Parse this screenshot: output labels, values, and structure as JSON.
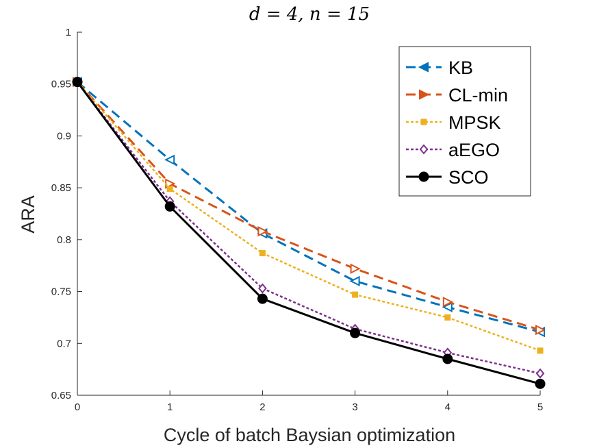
{
  "chart_data": {
    "type": "line",
    "title": "d = 4, n = 15",
    "xlabel": "Cycle of batch Baysian optimization",
    "ylabel": "ARA",
    "xlim": [
      0,
      5
    ],
    "ylim": [
      0.65,
      1
    ],
    "x": [
      0,
      1,
      2,
      3,
      4,
      5
    ],
    "x_ticks": [
      "0",
      "1",
      "2",
      "3",
      "4",
      "5"
    ],
    "y_ticks": [
      "0.65",
      "0.7",
      "0.75",
      "0.8",
      "0.85",
      "0.9",
      "0.95",
      "1"
    ],
    "legend_position": "top-right",
    "series": [
      {
        "name": "KB",
        "color": "#0072BD",
        "line": "dashed",
        "marker": "triangle-left-open",
        "values": [
          0.952,
          0.877,
          0.806,
          0.76,
          0.735,
          0.711
        ]
      },
      {
        "name": "CL-min",
        "color": "#D95319",
        "line": "dashed",
        "marker": "triangle-right-open",
        "values": [
          0.952,
          0.854,
          0.808,
          0.772,
          0.74,
          0.713
        ]
      },
      {
        "name": "MPSK",
        "color": "#EDB120",
        "line": "dotted",
        "marker": "square",
        "values": [
          0.952,
          0.849,
          0.787,
          0.747,
          0.725,
          0.693
        ]
      },
      {
        "name": "aEGO",
        "color": "#7E2F8E",
        "line": "dotted",
        "marker": "diamond-open",
        "values": [
          0.952,
          0.837,
          0.753,
          0.714,
          0.691,
          0.671
        ]
      },
      {
        "name": "SCO",
        "color": "#000000",
        "line": "solid",
        "marker": "circle-filled",
        "values": [
          0.952,
          0.832,
          0.743,
          0.71,
          0.685,
          0.661
        ]
      }
    ]
  }
}
